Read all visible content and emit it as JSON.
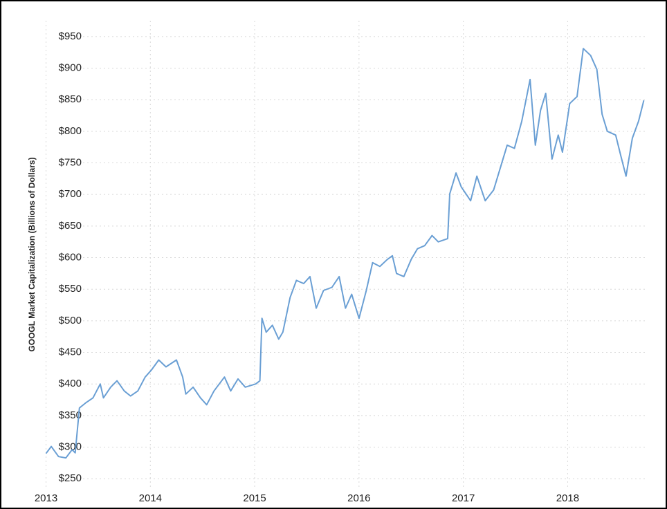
{
  "chart_data": {
    "type": "line",
    "y_label": "GOOGL Market Capitalization (Billions of Dollars)",
    "x": [
      2013.0,
      2013.05,
      2013.12,
      2013.19,
      2013.25,
      2013.28,
      2013.32,
      2013.38,
      2013.45,
      2013.52,
      2013.55,
      2013.62,
      2013.68,
      2013.75,
      2013.81,
      2013.88,
      2013.95,
      2014.01,
      2014.08,
      2014.15,
      2014.25,
      2014.31,
      2014.34,
      2014.41,
      2014.48,
      2014.54,
      2014.61,
      2014.71,
      2014.77,
      2014.84,
      2014.91,
      2015.01,
      2015.05,
      2015.07,
      2015.11,
      2015.17,
      2015.23,
      2015.27,
      2015.34,
      2015.4,
      2015.47,
      2015.53,
      2015.59,
      2015.66,
      2015.74,
      2015.81,
      2015.87,
      2015.93,
      2016.0,
      2016.07,
      2016.13,
      2016.2,
      2016.27,
      2016.32,
      2016.36,
      2016.43,
      2016.5,
      2016.56,
      2016.63,
      2016.7,
      2016.76,
      2016.85,
      2016.87,
      2016.93,
      2016.98,
      2017.07,
      2017.13,
      2017.21,
      2017.29,
      2017.36,
      2017.42,
      2017.49,
      2017.56,
      2017.64,
      2017.69,
      2017.74,
      2017.79,
      2017.85,
      2017.91,
      2017.95,
      2018.02,
      2018.09,
      2018.15,
      2018.22,
      2018.28,
      2018.33,
      2018.38,
      2018.46,
      2018.51,
      2018.56,
      2018.62,
      2018.68,
      2018.73
    ],
    "series": [
      {
        "name": "GOOGL",
        "color": "#6a9fd4",
        "values": [
          290,
          301,
          285,
          283,
          296,
          291,
          362,
          370,
          378,
          400,
          378,
          395,
          405,
          389,
          381,
          389,
          411,
          422,
          438,
          427,
          438,
          411,
          384,
          395,
          378,
          367,
          389,
          411,
          389,
          408,
          395,
          400,
          405,
          504,
          482,
          493,
          471,
          482,
          537,
          564,
          559,
          570,
          520,
          548,
          553,
          570,
          520,
          542,
          504,
          548,
          592,
          586,
          597,
          603,
          575,
          570,
          597,
          614,
          619,
          635,
          625,
          630,
          701,
          734,
          712,
          690,
          729,
          690,
          707,
          745,
          778,
          773,
          816,
          882,
          778,
          833,
          860,
          756,
          794,
          767,
          844,
          855,
          931,
          920,
          898,
          827,
          800,
          794,
          761,
          729,
          789,
          816,
          849
        ]
      }
    ],
    "xlim": [
      2012.97,
      2018.76
    ],
    "xticks": [
      2013,
      2014,
      2015,
      2016,
      2017,
      2018
    ],
    "ylim": [
      236,
      975
    ],
    "yticks": [
      {
        "value": 250,
        "label": "$250"
      },
      {
        "value": 300,
        "label": "$300"
      },
      {
        "value": 350,
        "label": "$350"
      },
      {
        "value": 400,
        "label": "$400"
      },
      {
        "value": 450,
        "label": "$450"
      },
      {
        "value": 500,
        "label": "$500"
      },
      {
        "value": 550,
        "label": "$550"
      },
      {
        "value": 600,
        "label": "$600"
      },
      {
        "value": 650,
        "label": "$650"
      },
      {
        "value": 700,
        "label": "$700"
      },
      {
        "value": 750,
        "label": "$750"
      },
      {
        "value": 800,
        "label": "$800"
      },
      {
        "value": 850,
        "label": "$850"
      },
      {
        "value": 900,
        "label": "$900"
      },
      {
        "value": 950,
        "label": "$950"
      }
    ],
    "grid": true
  }
}
